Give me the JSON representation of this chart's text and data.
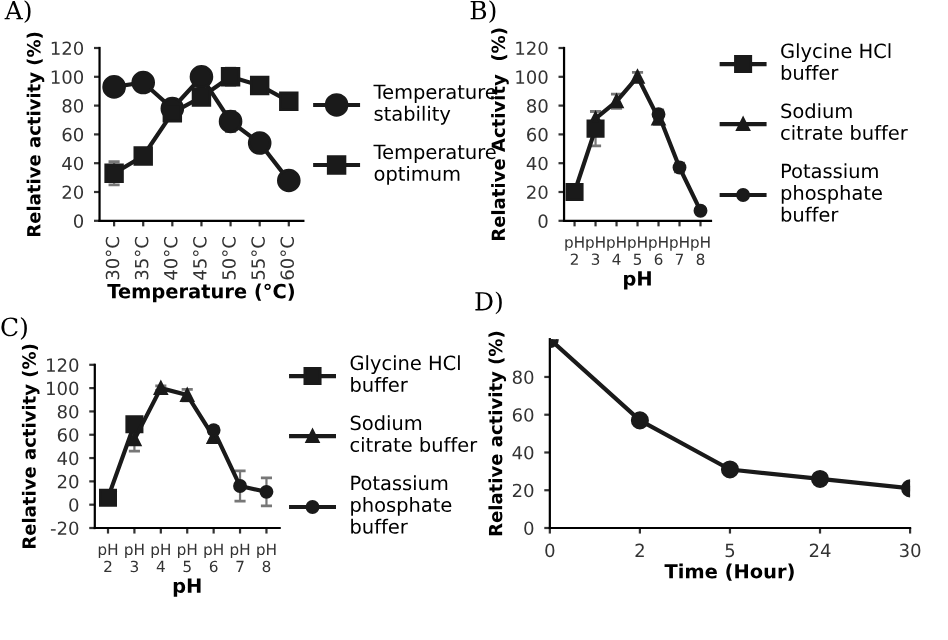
{
  "chart_data": [
    {
      "type": "line",
      "title": "A)",
      "xlabel": "Temperature (°C)",
      "ylabel": "Relative activity (%)",
      "categories": [
        "30°C",
        "35°C",
        "40°C",
        "45°C",
        "50°C",
        "55°C",
        "60°C"
      ],
      "ylim": [
        0,
        120
      ],
      "yticks": [
        0,
        20,
        40,
        60,
        80,
        100,
        120
      ],
      "legend": "right",
      "line_style": "solid",
      "series": [
        {
          "name": "Temperature\nstability",
          "color": "#1a1a1a",
          "marker": "circle",
          "values": [
            93,
            96,
            78,
            100,
            69,
            54,
            28
          ],
          "errors": [
            null,
            null,
            6,
            6,
            7,
            null,
            null
          ]
        },
        {
          "name": "Temperature\noptimum",
          "color": "#1a1a1a",
          "marker": "square",
          "values": [
            33,
            45,
            75,
            86,
            100,
            94,
            83
          ],
          "errors": [
            8,
            null,
            null,
            null,
            6,
            null,
            null
          ]
        }
      ]
    },
    {
      "type": "line",
      "title": "B)",
      "xlabel": "pH",
      "ylabel": "Relative Activity  (%)",
      "categories": [
        "pH\n2",
        "pH\n3",
        "pH\n4",
        "pH\n5",
        "pH\n6",
        "pH\n7",
        "pH\n8"
      ],
      "ylim": [
        0,
        120
      ],
      "yticks": [
        0,
        20,
        40,
        60,
        80,
        100,
        120
      ],
      "legend": "right",
      "line_style": "solid",
      "series": [
        {
          "name": "Glycine HCl\nbuffer",
          "color": "#1a1a1a",
          "marker": "square",
          "values": [
            20,
            64,
            null,
            null,
            null,
            null,
            null
          ],
          "errors": [
            5,
            12,
            null,
            null,
            null,
            null,
            null
          ]
        },
        {
          "name": "Sodium\ncitrate buffer",
          "color": "#1a1a1a",
          "marker": "triangle",
          "values": [
            null,
            71,
            83,
            100,
            71,
            null,
            null
          ],
          "errors": [
            null,
            5,
            5,
            3,
            4,
            null,
            null
          ]
        },
        {
          "name": "Potassium\nphosphate\nbuffer",
          "color": "#1a1a1a",
          "marker": "circle",
          "values": [
            null,
            null,
            null,
            null,
            74,
            37,
            7
          ],
          "errors": [
            null,
            null,
            null,
            null,
            3,
            3,
            2
          ]
        }
      ]
    },
    {
      "type": "line",
      "title": "C)",
      "xlabel": "pH",
      "ylabel": "Relative activity (%)",
      "categories": [
        "pH\n2",
        "pH\n3",
        "pH\n4",
        "pH\n5",
        "pH\n6",
        "pH\n7",
        "pH\n8"
      ],
      "ylim": [
        -20,
        120
      ],
      "yticks": [
        -20,
        0,
        20,
        40,
        60,
        80,
        100,
        120
      ],
      "legend": "right",
      "line_style": "solid",
      "series": [
        {
          "name": "Glycine HCl\nbuffer",
          "color": "#1a1a1a",
          "marker": "square",
          "values": [
            6,
            69,
            null,
            null,
            null,
            null,
            null
          ],
          "errors": [
            5,
            3,
            null,
            null,
            null,
            null,
            null
          ]
        },
        {
          "name": "Sodium\ncitrate buffer",
          "color": "#1a1a1a",
          "marker": "triangle",
          "values": [
            null,
            56,
            100,
            94,
            58,
            null,
            null
          ],
          "errors": [
            null,
            10,
            2,
            5,
            4,
            null,
            null
          ]
        },
        {
          "name": "Potassium\nphosphate\nbuffer",
          "color": "#1a1a1a",
          "marker": "circle",
          "values": [
            null,
            null,
            null,
            null,
            64,
            16,
            11
          ],
          "errors": [
            null,
            null,
            null,
            null,
            3,
            13,
            12
          ]
        }
      ]
    },
    {
      "type": "line",
      "title": "D)",
      "xlabel": "Time (Hour)",
      "ylabel": "Relative activity (%)",
      "categories": [
        "0",
        "2",
        "5",
        "24",
        "30"
      ],
      "ylim": [
        0,
        100
      ],
      "yticks": [
        0,
        20,
        40,
        60,
        80
      ],
      "legend": false,
      "line_style": "solid",
      "series": [
        {
          "color": "#1a1a1a",
          "marker": "circle",
          "values": [
            100,
            57,
            31,
            26,
            21
          ],
          "errors": [
            1,
            1.5,
            1.5,
            1.5,
            1.5
          ]
        }
      ]
    }
  ]
}
